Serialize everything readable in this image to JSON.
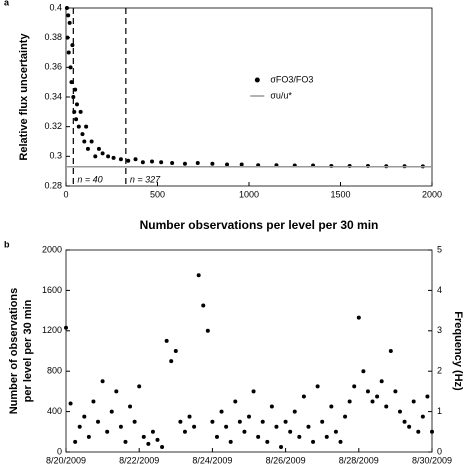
{
  "chart_data": [
    {
      "type": "scatter",
      "panel_label": "a",
      "ylabel": "Relative flux uncertainty",
      "xlabel": "Number observations per level per 30 min",
      "xlim": [
        0,
        2000
      ],
      "ylim": [
        0.28,
        0.4
      ],
      "xticks": [
        0,
        500,
        1000,
        1500,
        2000
      ],
      "yticks": [
        0.28,
        0.3,
        0.32,
        0.34,
        0.36,
        0.38,
        0.4
      ],
      "legend": "upper right",
      "vlines": [
        {
          "x": 40,
          "label": "n = 40"
        },
        {
          "x": 327,
          "label": "n = 327"
        }
      ],
      "series": [
        {
          "name": "σFO3/FO3",
          "color": "#000000",
          "mark": "dot",
          "x": [
            5,
            8,
            12,
            15,
            20,
            25,
            30,
            35,
            40,
            45,
            50,
            55,
            60,
            70,
            80,
            90,
            100,
            110,
            120,
            140,
            160,
            180,
            200,
            230,
            260,
            300,
            340,
            380,
            420,
            470,
            520,
            580,
            650,
            720,
            800,
            880,
            960,
            1050,
            1150,
            1250,
            1350,
            1450,
            1550,
            1650,
            1750,
            1850,
            1950
          ],
          "values": [
            0.4,
            0.38,
            0.395,
            0.37,
            0.39,
            0.36,
            0.35,
            0.375,
            0.34,
            0.33,
            0.345,
            0.325,
            0.335,
            0.32,
            0.33,
            0.315,
            0.31,
            0.32,
            0.305,
            0.31,
            0.3,
            0.305,
            0.302,
            0.3,
            0.299,
            0.298,
            0.297,
            0.298,
            0.296,
            0.2965,
            0.296,
            0.2955,
            0.295,
            0.2955,
            0.295,
            0.2945,
            0.2945,
            0.294,
            0.294,
            0.2938,
            0.2938,
            0.2935,
            0.2935,
            0.2935,
            0.2933,
            0.2933,
            0.2932
          ]
        },
        {
          "name": "σu/u*",
          "color": "#999999",
          "mark": "line",
          "x": [
            0,
            2000
          ],
          "values": [
            0.293,
            0.293
          ]
        }
      ]
    },
    {
      "type": "scatter",
      "panel_label": "b",
      "ylabel": [
        "Number of observations",
        "per level per 30 min"
      ],
      "y2label": "Frequency (Hz)",
      "xlim": [
        "2009-08-20T00:00",
        "2009-08-30T00:00"
      ],
      "ylim": [
        0,
        2000
      ],
      "y2lim": [
        0,
        5
      ],
      "xticks": [
        {
          "value": "2009-08-20T00:00",
          "label": "8/20/2009"
        },
        {
          "value": "2009-08-22T00:00",
          "label": "8/22/2009"
        },
        {
          "value": "2009-08-24T00:00",
          "label": "8/24/2009"
        },
        {
          "value": "2009-08-26T00:00",
          "label": "8/26/2009"
        },
        {
          "value": "2009-08-28T00:00",
          "label": "8/28/2009"
        },
        {
          "value": "2009-08-30T00:00",
          "label": "8/30/2009"
        }
      ],
      "yticks": [
        0,
        400,
        800,
        1200,
        1600,
        2000
      ],
      "y2ticks": [
        0,
        1,
        2,
        3,
        4,
        5
      ],
      "series": [
        {
          "color": "#000000",
          "mark": "dot",
          "x": [
            "2009-08-20T00:00",
            "2009-08-20T03:00",
            "2009-08-20T06:00",
            "2009-08-20T09:00",
            "2009-08-20T12:00",
            "2009-08-20T15:00",
            "2009-08-20T18:00",
            "2009-08-20T21:00",
            "2009-08-21T00:00",
            "2009-08-21T03:00",
            "2009-08-21T06:00",
            "2009-08-21T09:00",
            "2009-08-21T12:00",
            "2009-08-21T15:00",
            "2009-08-21T18:00",
            "2009-08-21T21:00",
            "2009-08-22T00:00",
            "2009-08-22T03:00",
            "2009-08-22T06:00",
            "2009-08-22T09:00",
            "2009-08-22T12:00",
            "2009-08-22T15:00",
            "2009-08-22T18:00",
            "2009-08-22T21:00",
            "2009-08-23T00:00",
            "2009-08-23T03:00",
            "2009-08-23T06:00",
            "2009-08-23T09:00",
            "2009-08-23T12:00",
            "2009-08-23T15:00",
            "2009-08-23T18:00",
            "2009-08-23T21:00",
            "2009-08-24T00:00",
            "2009-08-24T03:00",
            "2009-08-24T06:00",
            "2009-08-24T09:00",
            "2009-08-24T12:00",
            "2009-08-24T15:00",
            "2009-08-24T18:00",
            "2009-08-24T21:00",
            "2009-08-25T00:00",
            "2009-08-25T03:00",
            "2009-08-25T06:00",
            "2009-08-25T09:00",
            "2009-08-25T12:00",
            "2009-08-25T15:00",
            "2009-08-25T18:00",
            "2009-08-25T21:00",
            "2009-08-26T00:00",
            "2009-08-26T03:00",
            "2009-08-26T06:00",
            "2009-08-26T09:00",
            "2009-08-26T12:00",
            "2009-08-26T15:00",
            "2009-08-26T18:00",
            "2009-08-26T21:00",
            "2009-08-27T00:00",
            "2009-08-27T03:00",
            "2009-08-27T06:00",
            "2009-08-27T09:00",
            "2009-08-27T12:00",
            "2009-08-27T15:00",
            "2009-08-27T18:00",
            "2009-08-27T21:00",
            "2009-08-28T00:00",
            "2009-08-28T03:00",
            "2009-08-28T06:00",
            "2009-08-28T09:00",
            "2009-08-28T12:00",
            "2009-08-28T15:00",
            "2009-08-28T18:00",
            "2009-08-28T21:00",
            "2009-08-29T00:00",
            "2009-08-29T03:00",
            "2009-08-29T06:00",
            "2009-08-29T09:00",
            "2009-08-29T12:00",
            "2009-08-29T15:00",
            "2009-08-29T18:00",
            "2009-08-29T21:00",
            "2009-08-30T00:00"
          ],
          "values": [
            1230,
            480,
            100,
            250,
            350,
            150,
            500,
            300,
            700,
            200,
            400,
            600,
            250,
            100,
            450,
            300,
            650,
            150,
            80,
            200,
            120,
            50,
            1100,
            900,
            1000,
            300,
            200,
            350,
            250,
            1750,
            1450,
            1200,
            300,
            150,
            400,
            250,
            100,
            500,
            300,
            200,
            350,
            600,
            150,
            300,
            100,
            450,
            250,
            50,
            300,
            200,
            400,
            150,
            550,
            250,
            100,
            650,
            300,
            150,
            450,
            200,
            100,
            350,
            500,
            650,
            1330,
            800,
            600,
            500,
            550,
            700,
            450,
            1000,
            600,
            400,
            300,
            250,
            500,
            200,
            350,
            550,
            200
          ]
        }
      ]
    }
  ]
}
